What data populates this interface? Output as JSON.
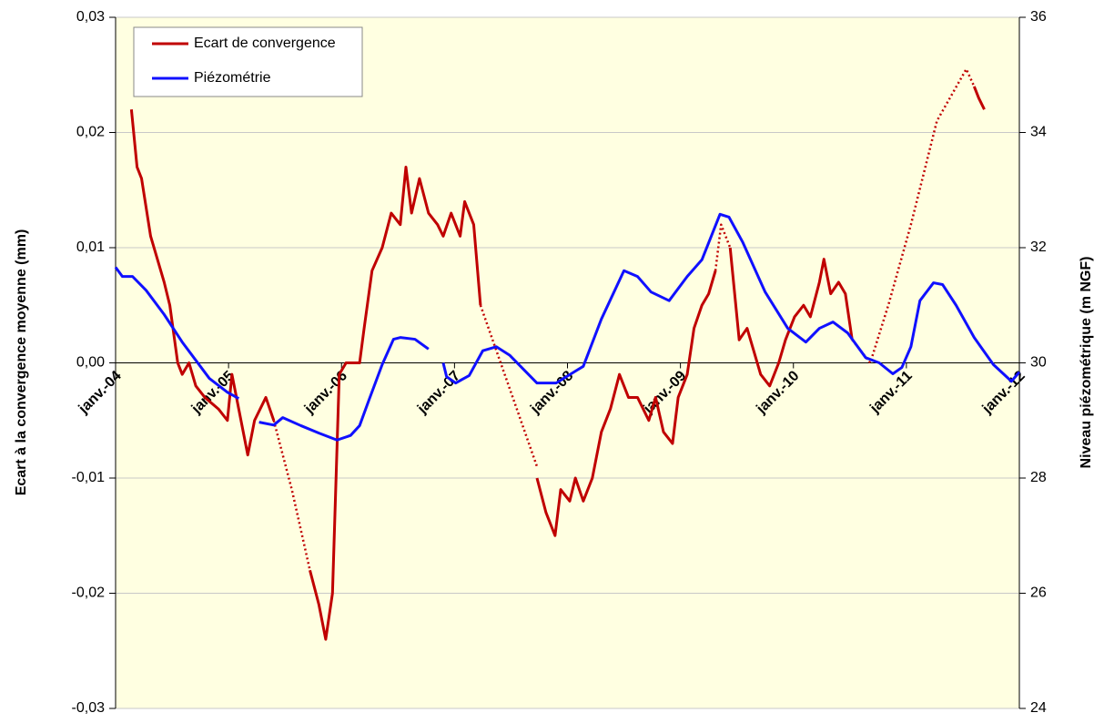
{
  "chart_data": {
    "type": "line",
    "y_label": "Ecart à la convergence moyenne (mm)",
    "y2_label": "Niveau piézométrique (m NGF)",
    "xlim": [
      2004,
      2012
    ],
    "xticks": [
      {
        "value": 2004,
        "label": "janv.-04"
      },
      {
        "value": 2005,
        "label": "janv.-05"
      },
      {
        "value": 2006,
        "label": "janv.-06"
      },
      {
        "value": 2007,
        "label": "janv.-07"
      },
      {
        "value": 2008,
        "label": "janv.-08"
      },
      {
        "value": 2009,
        "label": "janv.-09"
      },
      {
        "value": 2010,
        "label": "janv.-10"
      },
      {
        "value": 2011,
        "label": "janv.-11"
      },
      {
        "value": 2012,
        "label": "janv.-12"
      }
    ],
    "ylim": [
      -0.03,
      0.03
    ],
    "yticks": [
      {
        "value": -0.03,
        "label": "-0,03"
      },
      {
        "value": -0.02,
        "label": "-0,02"
      },
      {
        "value": -0.01,
        "label": "-0,01"
      },
      {
        "value": 0,
        "label": "0,00"
      },
      {
        "value": 0.01,
        "label": "0,01"
      },
      {
        "value": 0.02,
        "label": "0,02"
      },
      {
        "value": 0.03,
        "label": "0,03"
      }
    ],
    "y2lim": [
      24,
      36
    ],
    "y2ticks": [
      24,
      26,
      28,
      30,
      32,
      34,
      36
    ],
    "grid": true,
    "legend": "upper left",
    "series": [
      {
        "name": "Ecart de convergence",
        "color": "#c00000",
        "x": [
          2004.14,
          2004.19,
          2004.23,
          2004.31,
          2004.43,
          2004.48,
          2004.55,
          2004.59,
          2004.65,
          2004.71,
          2004.79,
          2004.91,
          2004.99,
          2005.03,
          2005.09,
          2005.17,
          2005.23,
          2005.33,
          2005.4,
          null,
          2005.72,
          2005.8,
          2005.86,
          2005.92,
          2005.98,
          2006.04,
          2006.16,
          2006.2,
          2006.27,
          2006.36,
          2006.44,
          2006.52,
          2006.57,
          2006.62,
          2006.69,
          2006.77,
          2006.85,
          2006.9,
          2006.97,
          2007.05,
          2007.09,
          2007.17,
          2007.23,
          null,
          2007.73,
          2007.81,
          2007.89,
          2007.94,
          2008.02,
          2008.07,
          2008.14,
          2008.22,
          2008.3,
          2008.38,
          2008.46,
          2008.54,
          2008.62,
          2008.72,
          2008.78,
          2008.85,
          2008.93,
          2008.98,
          2009.06,
          2009.12,
          2009.19,
          2009.25,
          2009.31,
          null,
          2009.44,
          2009.52,
          2009.59,
          2009.65,
          2009.71,
          2009.79,
          2009.87,
          2009.93,
          2010.01,
          2010.09,
          2010.15,
          2010.23,
          2010.27,
          2010.33,
          2010.4,
          2010.46,
          2010.52,
          null,
          2011.6,
          2011.64,
          2011.69
        ],
        "values": [
          0.022,
          0.017,
          0.016,
          0.011,
          0.007,
          0.005,
          0.0,
          -0.001,
          0.0,
          -0.002,
          -0.003,
          -0.004,
          -0.005,
          -0.001,
          -0.004,
          -0.008,
          -0.005,
          -0.003,
          -0.005,
          null,
          -0.018,
          -0.021,
          -0.024,
          -0.02,
          -0.001,
          0.0,
          0.0,
          0.003,
          0.008,
          0.01,
          0.013,
          0.012,
          0.017,
          0.013,
          0.016,
          0.013,
          0.012,
          0.011,
          0.013,
          0.011,
          0.014,
          0.012,
          0.005,
          null,
          -0.01,
          -0.013,
          -0.015,
          -0.011,
          -0.012,
          -0.01,
          -0.012,
          -0.01,
          -0.006,
          -0.004,
          -0.001,
          -0.003,
          -0.003,
          -0.005,
          -0.003,
          -0.006,
          -0.007,
          -0.003,
          -0.001,
          0.003,
          0.005,
          0.006,
          0.008,
          null,
          0.01,
          0.002,
          0.003,
          0.001,
          -0.001,
          -0.002,
          0.0,
          0.002,
          0.004,
          0.005,
          0.004,
          0.007,
          0.009,
          0.006,
          0.007,
          0.006,
          0.002,
          null,
          0.024,
          0.023,
          0.022
        ]
      },
      {
        "color": "#c00000",
        "dashed": true,
        "x": [
          2005.4,
          2005.56,
          2005.72,
          null,
          2007.23,
          2007.48,
          2007.73,
          null,
          2009.31,
          2009.36,
          2009.44,
          null,
          2010.52,
          2010.68,
          2010.84,
          2011.04,
          2011.27,
          2011.53,
          2011.6
        ],
        "values": [
          -0.005,
          -0.011,
          -0.018,
          null,
          0.005,
          -0.002,
          -0.009,
          null,
          0.008,
          0.012,
          0.01,
          null,
          0.002,
          0.0,
          0.005,
          0.012,
          0.021,
          0.0255,
          0.024
        ]
      },
      {
        "name": "Piézométrie",
        "color": "#1010ff",
        "axis": "y2",
        "x": [
          2004.0,
          2004.06,
          2004.15,
          2004.27,
          2004.43,
          2004.59,
          2004.83,
          2004.99,
          2005.09,
          null,
          2005.27,
          2005.4,
          2005.48,
          2005.64,
          2005.8,
          2005.96,
          2006.08,
          2006.16,
          2006.24,
          2006.36,
          2006.46,
          2006.52,
          2006.65,
          2006.77,
          null,
          2006.9,
          2006.93,
          2007.01,
          2007.13,
          2007.25,
          2007.37,
          2007.49,
          2007.73,
          2007.9,
          2008.14,
          2008.3,
          2008.5,
          2008.62,
          2008.74,
          2008.9,
          2009.06,
          2009.19,
          2009.35,
          2009.43,
          2009.55,
          2009.75,
          2009.95,
          2010.11,
          2010.23,
          2010.35,
          2010.48,
          2010.64,
          2010.76,
          2010.88,
          2010.96,
          2011.04,
          2011.12,
          2011.24,
          2011.32,
          2011.44,
          2011.6,
          2011.77,
          2011.93,
          2012.0
        ],
        "values": [
          31.66,
          31.5,
          31.5,
          31.26,
          30.84,
          30.36,
          29.73,
          29.49,
          29.38,
          null,
          28.97,
          28.92,
          29.05,
          28.91,
          28.78,
          28.66,
          28.74,
          28.91,
          29.34,
          29.97,
          30.41,
          30.44,
          30.41,
          30.24,
          null,
          30.0,
          29.76,
          29.65,
          29.78,
          30.21,
          30.28,
          30.13,
          29.65,
          29.65,
          29.94,
          30.76,
          31.6,
          31.5,
          31.23,
          31.08,
          31.5,
          31.79,
          32.58,
          32.53,
          32.1,
          31.23,
          30.6,
          30.36,
          30.6,
          30.71,
          30.52,
          30.09,
          30.0,
          29.81,
          29.92,
          30.28,
          31.08,
          31.39,
          31.36,
          31.0,
          30.44,
          29.97,
          29.68,
          29.84
        ]
      }
    ]
  }
}
